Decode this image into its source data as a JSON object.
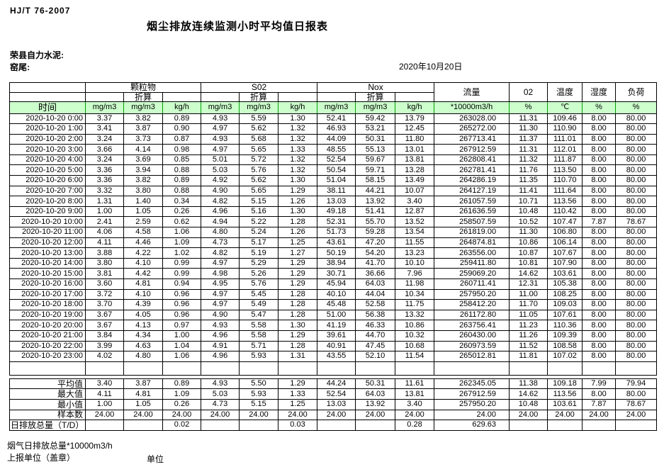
{
  "page": {
    "standard_code": "HJ/T  76-2007",
    "title": "烟尘排放连续监测小时平均值日报表",
    "company": "荣县自力水泥:",
    "site": "窑尾:",
    "date": "2020年10月20日"
  },
  "table": {
    "time_header": "时间",
    "zhesuan": "折算",
    "groups": [
      {
        "label": "颗粒物"
      },
      {
        "label": "S02"
      },
      {
        "label": "Nox"
      }
    ],
    "single_headers": {
      "flow": "流量",
      "o2": "02",
      "temperature": "温度",
      "humidity": "湿度",
      "load": "负荷"
    },
    "units": {
      "c1": "mg/m3",
      "c2": "mg/m3",
      "c3": "kg/h",
      "c4": "mg/m3",
      "c5": "mg/m3",
      "c6": "kg/h",
      "c7": "mg/m3",
      "c8": "mg/m3",
      "c9": "kg/h",
      "flow": "*10000m3/h",
      "o2": "%",
      "temperature": "℃",
      "humidity": "%",
      "load": "%"
    },
    "rows": [
      [
        "2020-10-20 0:00",
        "3.37",
        "3.82",
        "0.89",
        "4.93",
        "5.59",
        "1.30",
        "52.41",
        "59.42",
        "13.79",
        "263028.00",
        "11.31",
        "109.46",
        "8.00",
        "80.00"
      ],
      [
        "2020-10-20 1:00",
        "3.41",
        "3.87",
        "0.90",
        "4.97",
        "5.62",
        "1.32",
        "46.93",
        "53.21",
        "12.45",
        "265272.00",
        "11.30",
        "110.90",
        "8.00",
        "80.00"
      ],
      [
        "2020-10-20 2:00",
        "3.24",
        "3.73",
        "0.87",
        "4.93",
        "5.68",
        "1.32",
        "44.09",
        "50.31",
        "11.80",
        "267713.41",
        "11.37",
        "111.01",
        "8.00",
        "80.00"
      ],
      [
        "2020-10-20 3:00",
        "3.66",
        "4.14",
        "0.98",
        "4.97",
        "5.65",
        "1.33",
        "48.55",
        "55.13",
        "13.01",
        "267912.59",
        "11.31",
        "112.01",
        "8.00",
        "80.00"
      ],
      [
        "2020-10-20 4:00",
        "3.24",
        "3.69",
        "0.85",
        "5.01",
        "5.72",
        "1.32",
        "52.54",
        "59.67",
        "13.81",
        "262808.41",
        "11.32",
        "111.87",
        "8.00",
        "80.00"
      ],
      [
        "2020-10-20 5:00",
        "3.36",
        "3.94",
        "0.88",
        "5.03",
        "5.76",
        "1.32",
        "50.54",
        "59.71",
        "13.28",
        "262781.41",
        "11.76",
        "113.50",
        "8.00",
        "80.00"
      ],
      [
        "2020-10-20 6:00",
        "3.36",
        "3.82",
        "0.89",
        "4.92",
        "5.62",
        "1.30",
        "51.04",
        "58.15",
        "13.49",
        "264286.19",
        "11.35",
        "110.70",
        "8.00",
        "80.00"
      ],
      [
        "2020-10-20 7:00",
        "3.32",
        "3.80",
        "0.88",
        "4.90",
        "5.65",
        "1.29",
        "38.11",
        "44.21",
        "10.07",
        "264127.19",
        "11.41",
        "111.64",
        "8.00",
        "80.00"
      ],
      [
        "2020-10-20 8:00",
        "1.31",
        "1.40",
        "0.34",
        "4.82",
        "5.15",
        "1.26",
        "13.03",
        "13.92",
        "3.40",
        "261057.59",
        "10.71",
        "113.56",
        "8.00",
        "80.00"
      ],
      [
        "2020-10-20 9:00",
        "1.00",
        "1.05",
        "0.26",
        "4.96",
        "5.16",
        "1.30",
        "49.18",
        "51.41",
        "12.87",
        "261636.59",
        "10.48",
        "110.42",
        "8.00",
        "80.00"
      ],
      [
        "2020-10-20 10:00",
        "2.41",
        "2.59",
        "0.62",
        "4.94",
        "5.22",
        "1.28",
        "52.31",
        "55.70",
        "13.52",
        "258507.59",
        "10.52",
        "107.47",
        "7.87",
        "78.67"
      ],
      [
        "2020-10-20 11:00",
        "4.06",
        "4.58",
        "1.06",
        "4.80",
        "5.24",
        "1.26",
        "51.73",
        "59.28",
        "13.54",
        "261819.00",
        "11.30",
        "106.80",
        "8.00",
        "80.00"
      ],
      [
        "2020-10-20 12:00",
        "4.11",
        "4.46",
        "1.09",
        "4.73",
        "5.17",
        "1.25",
        "43.61",
        "47.20",
        "11.55",
        "264874.81",
        "10.86",
        "106.14",
        "8.00",
        "80.00"
      ],
      [
        "2020-10-20 13:00",
        "3.88",
        "4.22",
        "1.02",
        "4.82",
        "5.19",
        "1.27",
        "50.19",
        "54.20",
        "13.23",
        "263556.00",
        "10.87",
        "107.67",
        "8.00",
        "80.00"
      ],
      [
        "2020-10-20 14:00",
        "3.80",
        "4.10",
        "0.99",
        "4.97",
        "5.29",
        "1.29",
        "38.94",
        "41.70",
        "10.10",
        "259411.80",
        "10.81",
        "107.90",
        "8.00",
        "80.00"
      ],
      [
        "2020-10-20 15:00",
        "3.81",
        "4.42",
        "0.99",
        "4.98",
        "5.26",
        "1.29",
        "30.71",
        "36.66",
        "7.96",
        "259069.20",
        "14.62",
        "103.61",
        "8.00",
        "80.00"
      ],
      [
        "2020-10-20 16:00",
        "3.60",
        "4.81",
        "0.94",
        "4.95",
        "5.76",
        "1.29",
        "45.94",
        "64.03",
        "11.98",
        "260711.41",
        "12.31",
        "105.38",
        "8.00",
        "80.00"
      ],
      [
        "2020-10-20 17:00",
        "3.72",
        "4.10",
        "0.96",
        "4.97",
        "5.45",
        "1.28",
        "40.10",
        "44.04",
        "10.34",
        "257950.20",
        "11.00",
        "108.25",
        "8.00",
        "80.00"
      ],
      [
        "2020-10-20 18:00",
        "3.70",
        "4.39",
        "0.96",
        "4.97",
        "5.49",
        "1.28",
        "45.48",
        "52.58",
        "11.75",
        "258412.20",
        "11.70",
        "109.03",
        "8.00",
        "80.00"
      ],
      [
        "2020-10-20 19:00",
        "3.67",
        "4.05",
        "0.96",
        "4.90",
        "5.47",
        "1.28",
        "51.00",
        "56.38",
        "13.32",
        "261172.80",
        "11.05",
        "107.61",
        "8.00",
        "80.00"
      ],
      [
        "2020-10-20 20:00",
        "3.67",
        "4.13",
        "0.97",
        "4.93",
        "5.58",
        "1.30",
        "41.19",
        "46.33",
        "10.86",
        "263756.41",
        "11.23",
        "110.36",
        "8.00",
        "80.00"
      ],
      [
        "2020-10-20 21:00",
        "3.84",
        "4.34",
        "1.00",
        "4.96",
        "5.58",
        "1.29",
        "39.61",
        "44.70",
        "10.32",
        "260430.00",
        "11.26",
        "109.39",
        "8.00",
        "80.00"
      ],
      [
        "2020-10-20 22:00",
        "3.99",
        "4.63",
        "1.04",
        "4.91",
        "5.71",
        "1.28",
        "40.91",
        "47.45",
        "10.68",
        "260973.59",
        "11.52",
        "108.58",
        "8.00",
        "80.00"
      ],
      [
        "2020-10-20 23:00",
        "4.02",
        "4.80",
        "1.06",
        "4.96",
        "5.93",
        "1.31",
        "43.55",
        "52.10",
        "11.54",
        "265012.81",
        "11.81",
        "107.02",
        "8.00",
        "80.00"
      ]
    ],
    "summary_rows": [
      {
        "label": "平均值",
        "align": "right",
        "values": [
          "3.40",
          "3.87",
          "0.89",
          "4.93",
          "5.50",
          "1.29",
          "44.24",
          "50.31",
          "11.61",
          "262345.05",
          "11.38",
          "109.18",
          "7.99",
          "79.94"
        ]
      },
      {
        "label": "最大值",
        "align": "right",
        "values": [
          "4.11",
          "4.81",
          "1.09",
          "5.03",
          "5.93",
          "1.33",
          "52.54",
          "64.03",
          "13.81",
          "267912.59",
          "14.62",
          "113.56",
          "8.00",
          "80.00"
        ]
      },
      {
        "label": "最小值",
        "align": "right",
        "values": [
          "1.00",
          "1.05",
          "0.26",
          "4.73",
          "5.15",
          "1.25",
          "13.03",
          "13.92",
          "3.40",
          "257950.20",
          "10.48",
          "103.61",
          "7.87",
          "78.67"
        ]
      },
      {
        "label": "样本数",
        "align": "right",
        "values": [
          "24.00",
          "24.00",
          "24.00",
          "24.00",
          "24.00",
          "24.00",
          "24.00",
          "24.00",
          "24.00",
          "24.00",
          "24.00",
          "24.00",
          "24.00",
          "24.00"
        ]
      },
      {
        "label": "日排放总量（T/D）",
        "align": "left",
        "values": [
          "",
          "",
          "0.02",
          "",
          "",
          "0.03",
          "",
          "",
          "0.28",
          "629.63",
          "",
          "",
          "",
          ""
        ]
      }
    ]
  },
  "footer": {
    "note": "烟气日排放总量*10000m3/h",
    "report_unit": "上报单位（盖章）",
    "unit_label": "单位"
  },
  "colors": {
    "unit_row_bg": "#ccffcc",
    "unit_row_border": "#00a000"
  }
}
